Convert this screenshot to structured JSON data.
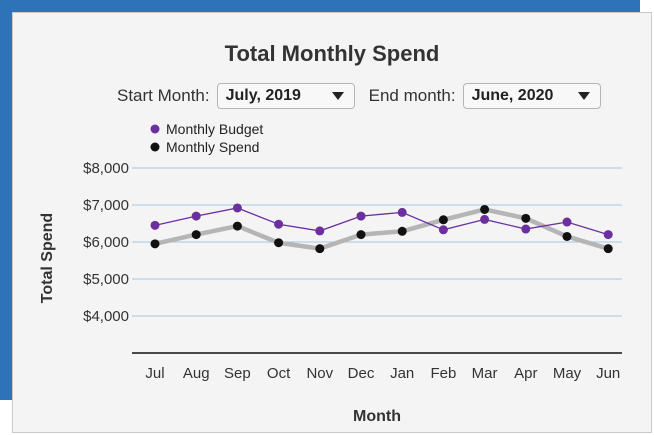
{
  "title": "Total Monthly Spend",
  "controls": {
    "start_label": "Start Month:",
    "start_value": "July, 2019",
    "end_label": "End month:",
    "end_value": "June, 2020"
  },
  "colors": {
    "budget": "#6b2fa0",
    "spend": "#111111",
    "spend_line": "#b5b5b5",
    "grid": "#a9c6e0",
    "frame_blue": "#2e73b8"
  },
  "chart_data": {
    "type": "line",
    "title": "Total Monthly Spend",
    "xlabel": "Month",
    "ylabel": "Total Spend",
    "categories": [
      "Jul",
      "Aug",
      "Sep",
      "Oct",
      "Nov",
      "Dec",
      "Jan",
      "Feb",
      "Mar",
      "Apr",
      "May",
      "Jun"
    ],
    "series": [
      {
        "name": "Monthly Budget",
        "values": [
          6450,
          6700,
          6920,
          6480,
          6300,
          6700,
          6800,
          6330,
          6610,
          6350,
          6540,
          6200
        ]
      },
      {
        "name": "Monthly Spend",
        "values": [
          5950,
          6200,
          6430,
          5980,
          5820,
          6200,
          6290,
          6600,
          6880,
          6640,
          6150,
          5820
        ]
      }
    ],
    "ylim": [
      3000,
      8000
    ],
    "yticks": [
      4000,
      5000,
      6000,
      7000,
      8000
    ],
    "ytick_labels": [
      "$4,000",
      "$5,000",
      "$6,000",
      "$7,000",
      "$8,000"
    ],
    "grid": true,
    "legend": "top-left"
  }
}
